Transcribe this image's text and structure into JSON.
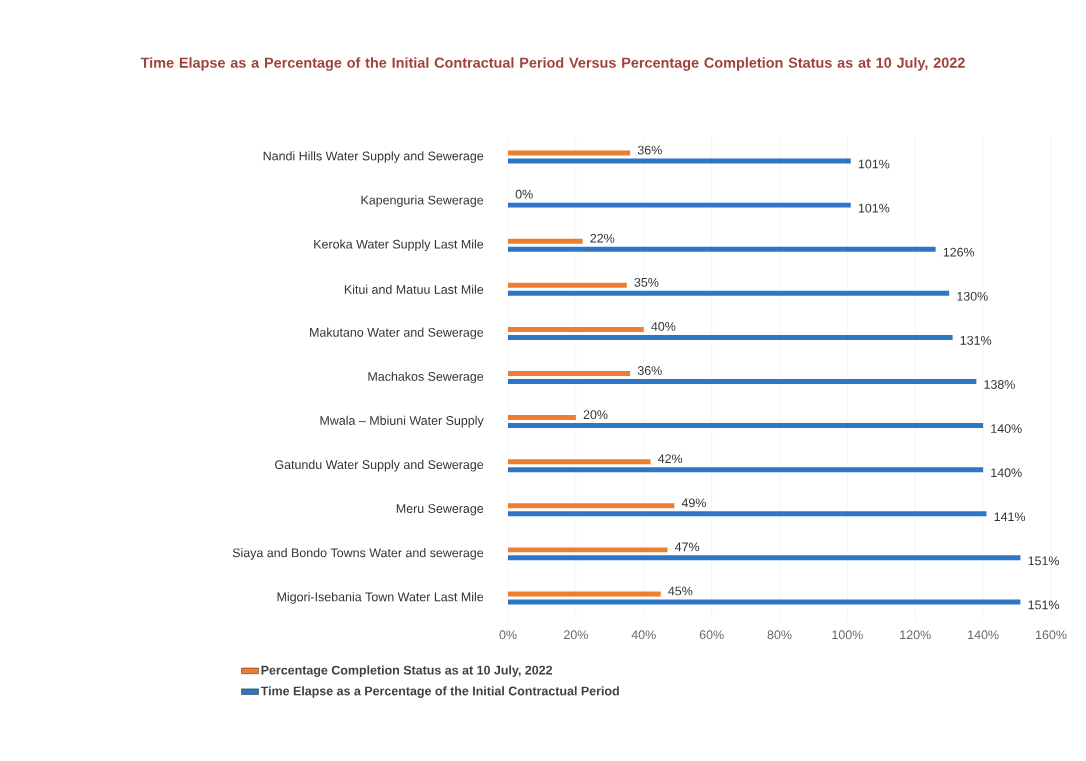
{
  "chart_data": {
    "type": "bar",
    "orientation": "horizontal",
    "title": "Time Elapse as a Percentage of the Initial Contractual Period Versus Percentage Completion Status as at 10 July, 2022",
    "categories": [
      "Nandi Hills Water Supply and Sewerage",
      "Kapenguria Sewerage",
      "Keroka Water Supply Last Mile",
      "Kitui and Matuu Last Mile",
      "Makutano Water and Sewerage",
      "Machakos Sewerage",
      "Mwala – Mbiuni Water Supply",
      "Gatundu Water Supply and Sewerage",
      "Meru Sewerage",
      "Siaya and Bondo Towns Water and sewerage",
      "Migori-Isebania Town Water Last Mile"
    ],
    "series": [
      {
        "name": "Percentage Completion Status as at 10 July, 2022",
        "color": "#ed7d31",
        "values": [
          36,
          0,
          22,
          35,
          40,
          36,
          20,
          42,
          49,
          47,
          45
        ],
        "value_labels": [
          "36%",
          "0%",
          "22%",
          "35%",
          "40%",
          "36%",
          "20%",
          "42%",
          "49%",
          "47%",
          "45%"
        ]
      },
      {
        "name": "Time Elapse as a Percentage of the Initial Contractual Period",
        "color": "#2e75c6",
        "values": [
          101,
          101,
          126,
          130,
          131,
          138,
          140,
          140,
          141,
          151,
          151
        ],
        "value_labels": [
          "101%",
          "101%",
          "126%",
          "130%",
          "131%",
          "138%",
          "140%",
          "140%",
          "141%",
          "151%",
          "151%"
        ]
      }
    ],
    "xlim": [
      0,
      160
    ],
    "xticks": [
      {
        "value": 0,
        "label": "0%"
      },
      {
        "value": 20,
        "label": "20%"
      },
      {
        "value": 40,
        "label": "40%"
      },
      {
        "value": 60,
        "label": "60%"
      },
      {
        "value": 80,
        "label": "80%"
      },
      {
        "value": 100,
        "label": "100%"
      },
      {
        "value": 120,
        "label": "120%"
      },
      {
        "value": 140,
        "label": "140%"
      },
      {
        "value": 160,
        "label": "160%"
      }
    ],
    "grid": "x",
    "legend": "bottom"
  }
}
